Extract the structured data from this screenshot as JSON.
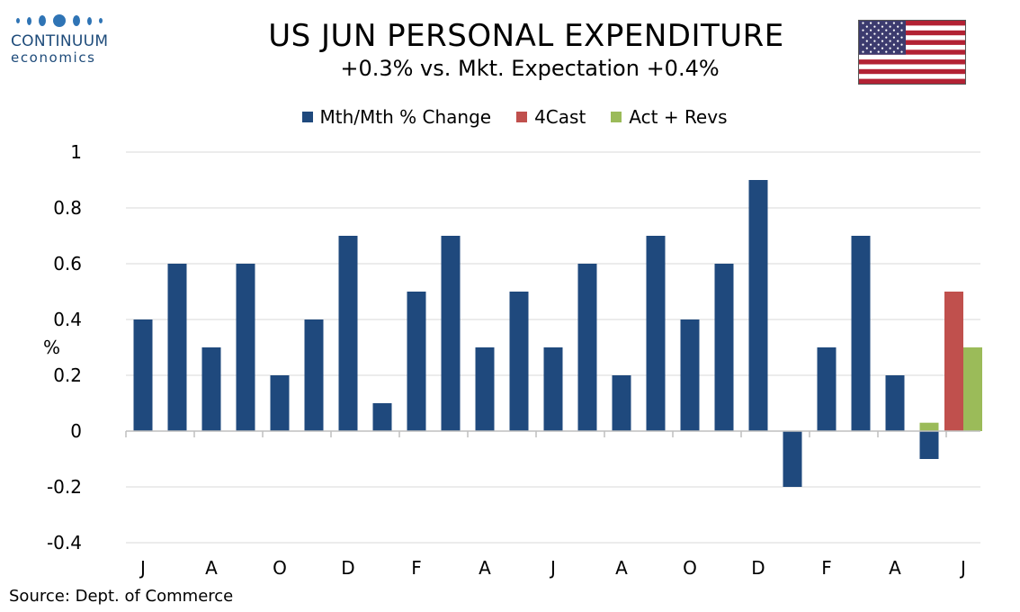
{
  "header": {
    "title": "US JUN PERSONAL EXPENDITURE",
    "subtitle": "+0.3% vs. Mkt. Expectation +0.4%"
  },
  "logo": {
    "name": "CONTINUUM",
    "sub": "economics",
    "color": "#1e4b7a"
  },
  "flag_icon": "us-flag-icon",
  "source": "Source: Dept. of Commerce",
  "colors": {
    "mth": "#1f497d",
    "forecast": "#c0504d",
    "actual": "#9bbb59",
    "grid": "#d9d9d9"
  },
  "chart_data": {
    "type": "bar",
    "ylabel": "%",
    "ylim": [
      -0.4,
      1
    ],
    "yticks": [
      "1",
      "0.8",
      "0.6",
      "0.4",
      "0.2",
      "0",
      "-0.2",
      "-0.4"
    ],
    "ytick_values": [
      1,
      0.8,
      0.6,
      0.4,
      0.2,
      0,
      -0.2,
      -0.4
    ],
    "xtick_labels": [
      "J",
      "A",
      "O",
      "D",
      "F",
      "A",
      "J",
      "A",
      "O",
      "D",
      "F",
      "A",
      "J"
    ],
    "legend": [
      "Mth/Mth % Change",
      "4Cast",
      "Act + Revs"
    ],
    "legend_position": "top-center",
    "grid": true,
    "series": [
      {
        "name": "Mth/Mth % Change",
        "values": [
          0.4,
          0.6,
          0.3,
          0.6,
          0.2,
          0.4,
          0.7,
          0.1,
          0.5,
          0.7,
          0.3,
          0.5,
          0.3,
          0.6,
          0.2,
          0.7,
          0.4,
          0.6,
          0.9,
          -0.2,
          0.3,
          0.7,
          0.2,
          -0.1,
          null
        ]
      },
      {
        "name": "4Cast",
        "values": [
          null,
          null,
          null,
          null,
          null,
          null,
          null,
          null,
          null,
          null,
          null,
          null,
          null,
          null,
          null,
          null,
          null,
          null,
          null,
          null,
          null,
          null,
          null,
          null,
          0.5
        ]
      },
      {
        "name": "Act + Revs",
        "values": [
          null,
          null,
          null,
          null,
          null,
          null,
          null,
          null,
          null,
          null,
          null,
          null,
          null,
          null,
          null,
          null,
          null,
          null,
          null,
          null,
          null,
          null,
          null,
          0.03,
          0.3
        ]
      }
    ]
  }
}
